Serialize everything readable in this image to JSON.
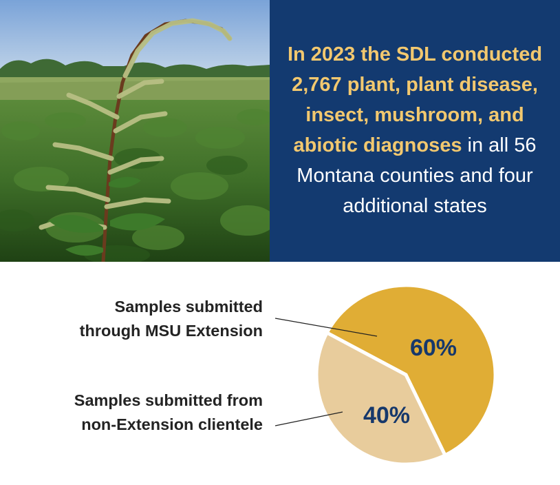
{
  "banner": {
    "highlight": "In 2023 the SDL conducted 2,767 plant, plant disease, insect, mushroom, and abiotic diagnoses",
    "rest": " in all 56 Montana counties and four additional states"
  },
  "colors": {
    "banner_bg": "#133a70",
    "highlight": "#f2c86f",
    "extension_slice": "#e0ad35",
    "non_extension_slice": "#e8cc9c",
    "percent_text": "#16386b"
  },
  "photo": {
    "icon": "pigweed-field-photo"
  },
  "chart_data": {
    "type": "pie",
    "slices": [
      {
        "label_lines": [
          "Samples submitted",
          "through MSU Extension"
        ],
        "value": 60,
        "display": "60%"
      },
      {
        "label_lines": [
          "Samples submitted from",
          "non-Extension clientele"
        ],
        "value": 40,
        "display": "40%"
      }
    ]
  }
}
